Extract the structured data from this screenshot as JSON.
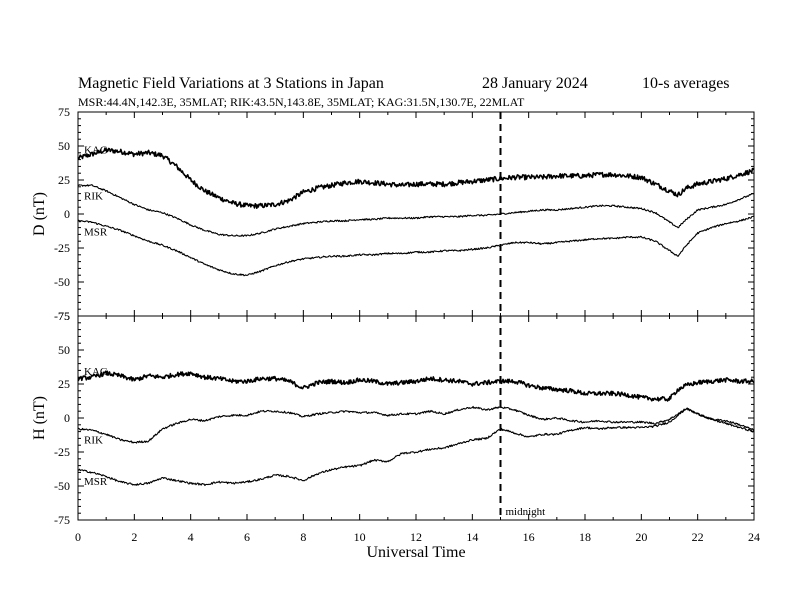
{
  "chart_data": {
    "type": "line",
    "title": "Magnetic Field Variations at 3 Stations in Japan",
    "date": "28 January  2024",
    "averaging": "10-s averages",
    "subtitle": "MSR:44.4N,142.3E, 35MLAT;  RIK:43.5N,143.8E, 35MLAT;  KAG:31.5N,130.7E, 22MLAT",
    "xlabel": "Universal Time",
    "xlim": [
      0,
      24
    ],
    "xticks": [
      "0",
      "2",
      "4",
      "6",
      "8",
      "10",
      "12",
      "14",
      "16",
      "18",
      "20",
      "22",
      "24"
    ],
    "midnight": {
      "x": 15,
      "label": "midnight"
    },
    "panels": [
      {
        "ylabel": "D (nT)",
        "ylim": [
          -75,
          75
        ],
        "yticks": [
          "75",
          "50",
          "25",
          "0",
          "-25",
          "-50",
          "-75"
        ],
        "series": [
          {
            "name": "KAG",
            "noise": 1.8,
            "x": [
              0,
              0.5,
              1,
              1.5,
              2,
              2.5,
              3,
              3.5,
              4,
              4.5,
              5,
              5.5,
              6,
              6.5,
              7,
              7.5,
              8,
              8.5,
              9,
              9.5,
              10,
              10.5,
              11,
              11.5,
              12,
              12.5,
              13,
              13.5,
              14,
              14.5,
              15,
              15.5,
              16,
              16.5,
              17,
              17.5,
              18,
              18.5,
              19,
              19.5,
              20,
              20.5,
              21,
              21.3,
              21.6,
              22,
              22.5,
              23,
              23.5,
              24
            ],
            "y": [
              41,
              44,
              47,
              46,
              44,
              45,
              43,
              35,
              25,
              17,
              12,
              8,
              6,
              6,
              7,
              10,
              16,
              19,
              21,
              23,
              24,
              23,
              22,
              21,
              22,
              22,
              22,
              23,
              24,
              25,
              26,
              27,
              27,
              27,
              28,
              28,
              28,
              29,
              29,
              28,
              27,
              22,
              17,
              14,
              19,
              22,
              24,
              26,
              29,
              32
            ]
          },
          {
            "name": "RIK",
            "noise": 0.6,
            "x": [
              0,
              0.5,
              1,
              1.5,
              2,
              2.5,
              3,
              3.5,
              4,
              4.5,
              5,
              5.5,
              6,
              6.5,
              7,
              7.5,
              8,
              8.5,
              9,
              9.5,
              10,
              10.5,
              11,
              11.5,
              12,
              12.5,
              13,
              13.5,
              14,
              14.5,
              15,
              15.5,
              16,
              16.5,
              17,
              17.5,
              18,
              18.5,
              19,
              19.5,
              20,
              20.5,
              21,
              21.3,
              21.6,
              22,
              22.5,
              23,
              23.5,
              24
            ],
            "y": [
              21,
              21,
              17,
              12,
              7,
              3,
              1,
              -3,
              -8,
              -12,
              -15,
              -16,
              -16,
              -14,
              -11,
              -9,
              -7,
              -6,
              -5,
              -5,
              -4,
              -4,
              -3,
              -3,
              -3,
              -2,
              -2,
              -2,
              -1,
              -1,
              0,
              1,
              2,
              3,
              3,
              4,
              5,
              6,
              6,
              5,
              4,
              1,
              -6,
              -10,
              -4,
              3,
              5,
              7,
              11,
              15
            ]
          },
          {
            "name": "MSR",
            "noise": 0.6,
            "x": [
              0,
              0.5,
              1,
              1.5,
              2,
              2.5,
              3,
              3.5,
              4,
              4.5,
              5,
              5.5,
              6,
              6.5,
              7,
              7.5,
              8,
              8.5,
              9,
              9.5,
              10,
              10.5,
              11,
              11.5,
              12,
              12.5,
              13,
              13.5,
              14,
              14.5,
              15,
              15.5,
              16,
              16.5,
              17,
              17.5,
              18,
              18.5,
              19,
              19.5,
              20,
              20.5,
              21,
              21.3,
              21.6,
              22,
              22.5,
              23,
              23.5,
              24
            ],
            "y": [
              -5,
              -6,
              -9,
              -12,
              -16,
              -20,
              -23,
              -27,
              -32,
              -37,
              -41,
              -44,
              -45,
              -42,
              -38,
              -35,
              -33,
              -32,
              -31,
              -31,
              -30,
              -30,
              -29,
              -29,
              -28,
              -28,
              -27,
              -27,
              -26,
              -25,
              -23,
              -21,
              -21,
              -22,
              -21,
              -20,
              -19,
              -18,
              -18,
              -17,
              -17,
              -20,
              -27,
              -31,
              -23,
              -14,
              -10,
              -7,
              -5,
              -2
            ]
          }
        ]
      },
      {
        "ylabel": "H (nT)",
        "ylim": [
          -75,
          75
        ],
        "yticks": [
          "75",
          "50",
          "25",
          "0",
          "-25",
          "-50",
          "-75"
        ],
        "series": [
          {
            "name": "KAG",
            "noise": 1.6,
            "x": [
              0,
              0.5,
              1,
              1.5,
              2,
              2.5,
              3,
              3.5,
              4,
              4.5,
              5,
              5.5,
              6,
              6.5,
              7,
              7.5,
              8,
              8.5,
              9,
              9.5,
              10,
              10.5,
              11,
              11.5,
              12,
              12.5,
              13,
              13.5,
              14,
              14.5,
              15,
              15.5,
              16,
              16.5,
              17,
              17.5,
              18,
              18.5,
              19,
              19.5,
              20,
              20.5,
              21,
              21.3,
              21.6,
              22,
              22.5,
              23,
              23.5,
              24
            ],
            "y": [
              29,
              30,
              33,
              31,
              28,
              31,
              30,
              32,
              33,
              30,
              29,
              27,
              27,
              29,
              29,
              27,
              22,
              26,
              27,
              26,
              28,
              27,
              25,
              26,
              27,
              29,
              28,
              27,
              25,
              26,
              27,
              27,
              24,
              22,
              21,
              20,
              18,
              18,
              18,
              17,
              15,
              14,
              14,
              21,
              24,
              26,
              27,
              28,
              27,
              27
            ]
          },
          {
            "name": "RIK",
            "noise": 0.7,
            "x": [
              0,
              0.5,
              1,
              1.5,
              2,
              2.5,
              3,
              3.5,
              4,
              4.5,
              5,
              5.5,
              6,
              6.5,
              7,
              7.5,
              8,
              8.5,
              9,
              9.5,
              10,
              10.5,
              11,
              11.5,
              12,
              12.5,
              13,
              13.5,
              14,
              14.5,
              15,
              15.5,
              16,
              16.5,
              17,
              17.5,
              18,
              18.5,
              19,
              19.5,
              20,
              20.5,
              21,
              21.3,
              21.6,
              22,
              22.5,
              23,
              23.5,
              24
            ],
            "y": [
              -8,
              -9,
              -12,
              -16,
              -18,
              -17,
              -8,
              -4,
              -1,
              -2,
              1,
              2,
              2,
              5,
              5,
              4,
              1,
              3,
              4,
              5,
              4,
              4,
              2,
              3,
              3,
              5,
              3,
              6,
              8,
              6,
              8,
              6,
              2,
              -1,
              0,
              -2,
              -3,
              -2,
              -3,
              -3,
              -3,
              -4,
              -1,
              3,
              7,
              3,
              -1,
              -2,
              -5,
              -9
            ]
          },
          {
            "name": "MSR",
            "noise": 0.7,
            "x": [
              0,
              0.5,
              1,
              1.5,
              2,
              2.5,
              3,
              3.5,
              4,
              4.5,
              5,
              5.5,
              6,
              6.5,
              7,
              7.5,
              8,
              8.5,
              9,
              9.5,
              10,
              10.5,
              11,
              11.5,
              12,
              12.5,
              13,
              13.5,
              14,
              14.5,
              15,
              15.5,
              16,
              16.5,
              17,
              17.5,
              18,
              18.5,
              19,
              19.5,
              20,
              20.5,
              21,
              21.3,
              21.6,
              22,
              22.5,
              23,
              23.5,
              24
            ],
            "y": [
              -38,
              -40,
              -43,
              -47,
              -49,
              -48,
              -44,
              -46,
              -48,
              -49,
              -47,
              -48,
              -47,
              -45,
              -42,
              -43,
              -46,
              -41,
              -38,
              -36,
              -35,
              -31,
              -32,
              -26,
              -25,
              -23,
              -22,
              -19,
              -16,
              -15,
              -8,
              -11,
              -14,
              -12,
              -12,
              -9,
              -7,
              -8,
              -7,
              -7,
              -7,
              -6,
              -3,
              2,
              7,
              3,
              -1,
              -4,
              -7,
              -10
            ]
          }
        ]
      }
    ]
  }
}
